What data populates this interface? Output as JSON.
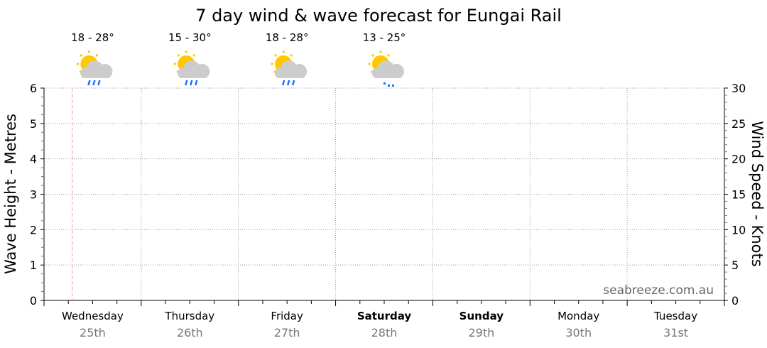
{
  "chart_data": {
    "type": "line",
    "title": "7 day wind & wave forecast for Eungai Rail",
    "ylabel_left": "Wave Height - Metres",
    "ylabel_right": "Wind Speed - Knots",
    "ylim_left": [
      0,
      6
    ],
    "ylim_right": [
      0,
      30
    ],
    "yticks_left": [
      "0",
      "1",
      "2",
      "3",
      "4",
      "5",
      "6"
    ],
    "yticks_right": [
      "0",
      "5",
      "10",
      "15",
      "20",
      "25",
      "30"
    ],
    "grid": true,
    "watermark": "seabreeze.com.au",
    "days": [
      {
        "name": "Wednesday",
        "date": "25th",
        "bold": false
      },
      {
        "name": "Thursday",
        "date": "26th",
        "bold": false
      },
      {
        "name": "Friday",
        "date": "27th",
        "bold": false
      },
      {
        "name": "Saturday",
        "date": "28th",
        "bold": true
      },
      {
        "name": "Sunday",
        "date": "29th",
        "bold": true
      },
      {
        "name": "Monday",
        "date": "30th",
        "bold": false
      },
      {
        "name": "Tuesday",
        "date": "31st",
        "bold": false
      }
    ],
    "forecasts": [
      {
        "temp": "18 - 28°",
        "icon": "sun-cloud-rain-icon"
      },
      {
        "temp": "15 - 30°",
        "icon": "sun-cloud-rain-icon"
      },
      {
        "temp": "18 - 28°",
        "icon": "sun-cloud-rain-icon"
      },
      {
        "temp": "13 - 25°",
        "icon": "sun-cloud-drizzle-icon"
      }
    ],
    "now_marker_day_fraction": 0.29,
    "series": [],
    "colors": {
      "now_line": "#ff9999",
      "grid": "#999999",
      "sun": "#ffc800",
      "cloud": "#cccccc",
      "rain": "#1f6fff",
      "date": "#777777"
    }
  }
}
